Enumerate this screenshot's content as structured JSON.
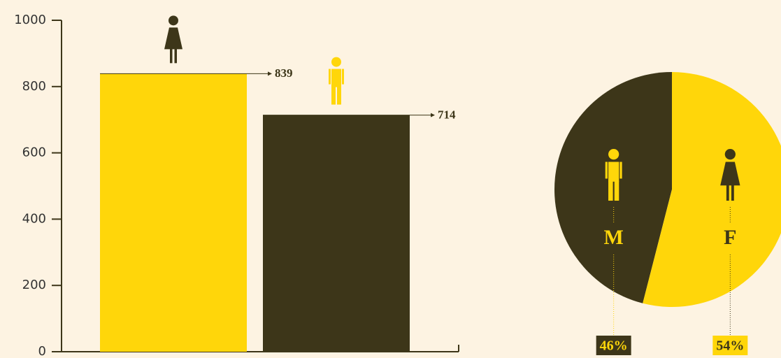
{
  "chart_data": [
    {
      "type": "bar",
      "categories": [
        null,
        null
      ],
      "values": [
        839,
        714
      ],
      "colors": [
        "#ffd60a",
        "#3d3619"
      ],
      "ylim": [
        0,
        1000
      ],
      "yticks": [
        0,
        200,
        400,
        600,
        800,
        1000
      ]
    },
    {
      "type": "pie",
      "categories": [
        "M",
        "F"
      ],
      "values": [
        46,
        54
      ],
      "value_labels": [
        "46%",
        "54%"
      ],
      "colors": [
        "#3d3619",
        "#ffd60a"
      ]
    }
  ]
}
